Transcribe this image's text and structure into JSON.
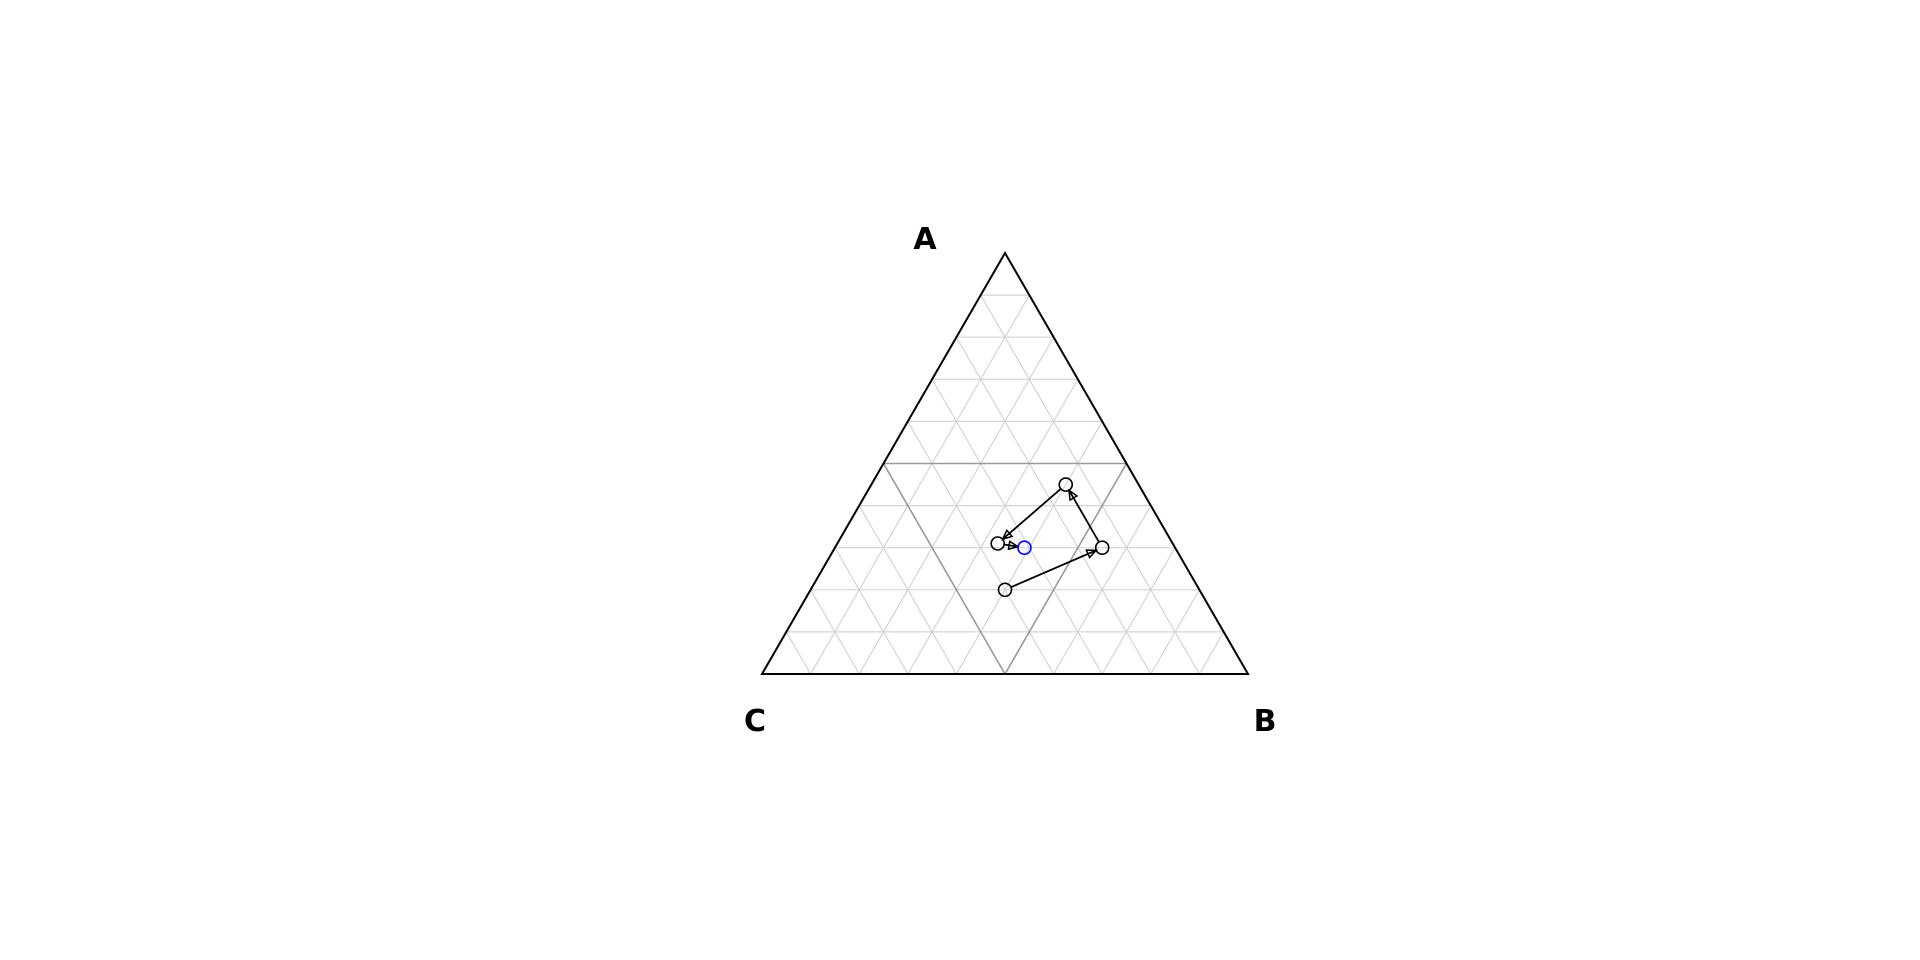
{
  "chart_data": {
    "type": "ternary",
    "title": "",
    "vertices": {
      "top": "A",
      "right": "B",
      "left": "C"
    },
    "grid": {
      "minor_step": 0.1,
      "major_step": 0.5,
      "minor_color": "#d4d4d4",
      "major_color": "#9a9a9a",
      "boundary_color": "#000000"
    },
    "path": {
      "color": "#000000",
      "points": [
        {
          "A": 0.2,
          "B": 0.4,
          "C": 0.4
        },
        {
          "A": 0.3,
          "B": 0.55,
          "C": 0.15
        },
        {
          "A": 0.45,
          "B": 0.4,
          "C": 0.15
        },
        {
          "A": 0.31,
          "B": 0.33,
          "C": 0.36
        },
        {
          "A": 0.3,
          "B": 0.39,
          "C": 0.31
        }
      ],
      "last_point_color": "#0000ff"
    }
  }
}
